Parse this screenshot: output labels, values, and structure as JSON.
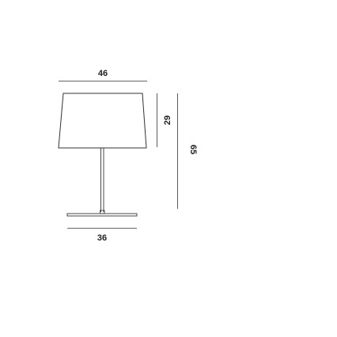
{
  "dimensions": {
    "shade_width": "46",
    "shade_height": "29",
    "total_height": "65",
    "base_width": "36"
  },
  "colors": {
    "line": "#333333",
    "text": "#222222",
    "background": "#ffffff"
  }
}
